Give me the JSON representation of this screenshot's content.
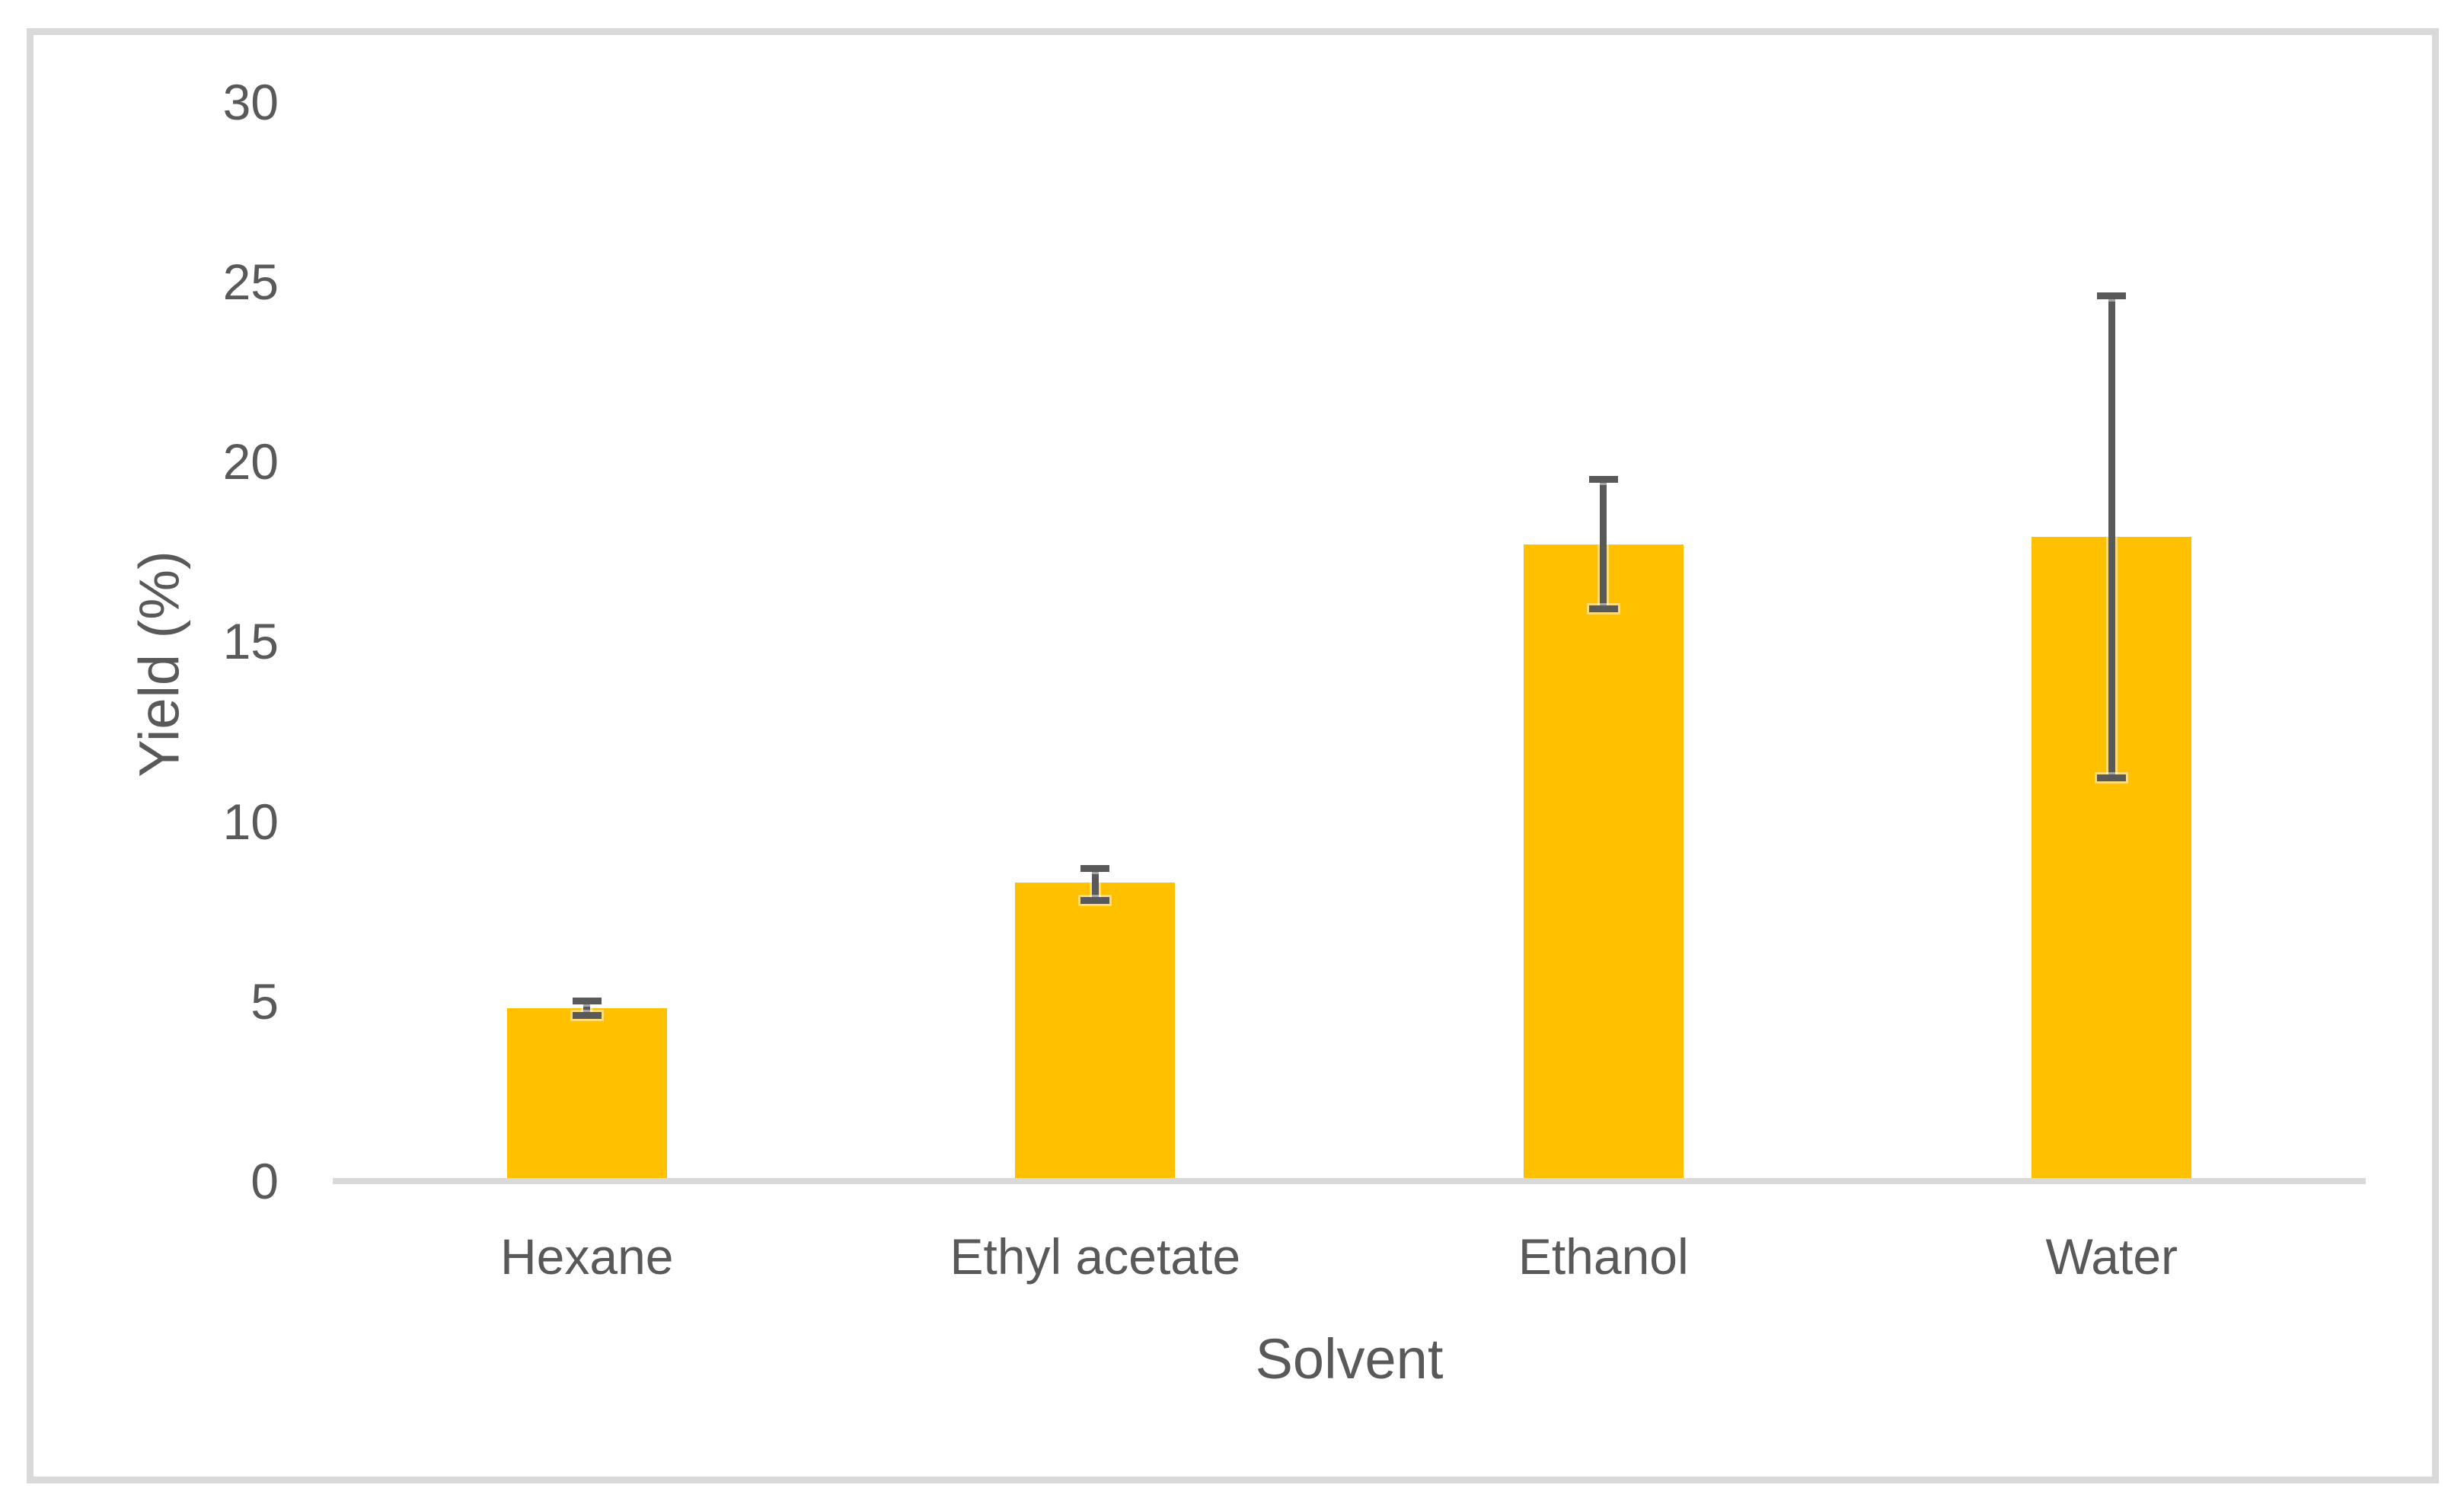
{
  "chart_data": {
    "type": "bar",
    "title": "",
    "xlabel": "Solvent",
    "ylabel": "Yield (%)",
    "categories": [
      "Hexane",
      "Ethyl acetate",
      "Ethanol",
      "Water"
    ],
    "values": [
      4.8,
      8.3,
      17.7,
      17.9
    ],
    "error_bars": {
      "upper": [
        5.0,
        8.7,
        19.5,
        24.6
      ],
      "lower": [
        4.6,
        7.8,
        15.9,
        11.2
      ]
    },
    "y_ticks": [
      0,
      5,
      10,
      15,
      20,
      25,
      30
    ],
    "ylim": [
      0,
      30
    ],
    "grid": false,
    "legend": false,
    "bar_color": "#FFC000",
    "error_bar_color": "#595959",
    "axis_line_color": "#D9D9D9",
    "text_color": "#595959",
    "border_color": "#D9D9D9",
    "background_color": "#FFFFFF"
  }
}
